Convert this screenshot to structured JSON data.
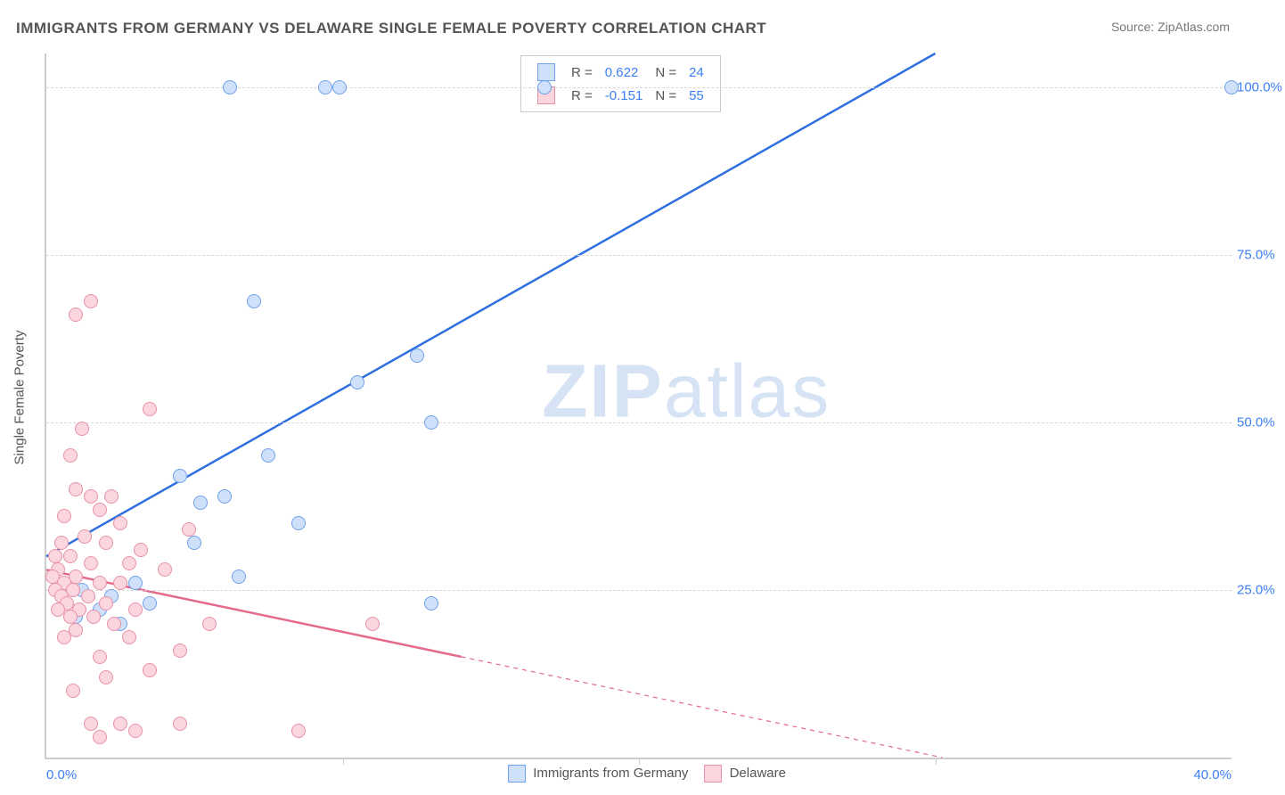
{
  "title": "IMMIGRANTS FROM GERMANY VS DELAWARE SINGLE FEMALE POVERTY CORRELATION CHART",
  "source_prefix": "Source: ",
  "source_name": "ZipAtlas.com",
  "y_axis_title": "Single Female Poverty",
  "watermark_bold": "ZIP",
  "watermark_light": "atlas",
  "chart": {
    "type": "scatter",
    "xlim": [
      0,
      40
    ],
    "ylim": [
      0,
      105
    ],
    "x_ticks": [
      0,
      10,
      20,
      30,
      40
    ],
    "x_tick_labels": [
      "0.0%",
      "",
      "",
      "",
      "40.0%"
    ],
    "y_ticks": [
      25,
      50,
      75,
      100
    ],
    "y_tick_labels": [
      "25.0%",
      "50.0%",
      "75.0%",
      "100.0%"
    ],
    "grid_color": "#d8d8d8",
    "axis_color": "#cccccc",
    "background_color": "#ffffff",
    "tick_label_color": "#3d7ff5",
    "axis_title_color": "#555555",
    "label_fontsize": 15,
    "title_fontsize": 17,
    "point_radius": 8,
    "series": [
      {
        "name": "Immigrants from Germany",
        "fill": "#cfe0fb",
        "stroke": "#6fa0ea",
        "line_color": "#2f6fe0",
        "line_width": 2.5,
        "R": "0.622",
        "N": "24",
        "points": [
          [
            6.2,
            100
          ],
          [
            9.4,
            100
          ],
          [
            9.9,
            100
          ],
          [
            16.8,
            100
          ],
          [
            40.0,
            100
          ],
          [
            7.0,
            68
          ],
          [
            12.5,
            60
          ],
          [
            10.5,
            56
          ],
          [
            13.0,
            50
          ],
          [
            7.5,
            45
          ],
          [
            4.5,
            42
          ],
          [
            6.0,
            39
          ],
          [
            5.2,
            38
          ],
          [
            8.5,
            35
          ],
          [
            5.0,
            32
          ],
          [
            6.5,
            27
          ],
          [
            3.0,
            26
          ],
          [
            1.2,
            25
          ],
          [
            2.2,
            24
          ],
          [
            3.5,
            23
          ],
          [
            13.0,
            23
          ],
          [
            1.8,
            22
          ],
          [
            1.0,
            21
          ],
          [
            2.5,
            20
          ]
        ],
        "trend": {
          "x1": 0,
          "y1": 30,
          "x2": 30,
          "y2": 105,
          "dash_from_x": null
        }
      },
      {
        "name": "Delaware",
        "fill": "#fbd6df",
        "stroke": "#e890a6",
        "line_color": "#e36a8b",
        "line_width": 2.5,
        "R": "-0.151",
        "N": "55",
        "points": [
          [
            1.5,
            68
          ],
          [
            1.0,
            66
          ],
          [
            3.5,
            52
          ],
          [
            1.2,
            49
          ],
          [
            0.8,
            45
          ],
          [
            1.0,
            40
          ],
          [
            1.5,
            39
          ],
          [
            2.2,
            39
          ],
          [
            1.8,
            37
          ],
          [
            0.6,
            36
          ],
          [
            2.5,
            35
          ],
          [
            4.8,
            34
          ],
          [
            1.3,
            33
          ],
          [
            0.5,
            32
          ],
          [
            2.0,
            32
          ],
          [
            3.2,
            31
          ],
          [
            0.3,
            30
          ],
          [
            0.8,
            30
          ],
          [
            1.5,
            29
          ],
          [
            2.8,
            29
          ],
          [
            4.0,
            28
          ],
          [
            0.4,
            28
          ],
          [
            1.0,
            27
          ],
          [
            0.2,
            27
          ],
          [
            0.6,
            26
          ],
          [
            1.8,
            26
          ],
          [
            2.5,
            26
          ],
          [
            0.3,
            25
          ],
          [
            0.9,
            25
          ],
          [
            1.4,
            24
          ],
          [
            0.5,
            24
          ],
          [
            2.0,
            23
          ],
          [
            0.7,
            23
          ],
          [
            1.1,
            22
          ],
          [
            3.0,
            22
          ],
          [
            0.4,
            22
          ],
          [
            1.6,
            21
          ],
          [
            0.8,
            21
          ],
          [
            2.3,
            20
          ],
          [
            5.5,
            20
          ],
          [
            11.0,
            20
          ],
          [
            1.0,
            19
          ],
          [
            2.8,
            18
          ],
          [
            0.6,
            18
          ],
          [
            4.5,
            16
          ],
          [
            1.8,
            15
          ],
          [
            3.5,
            13
          ],
          [
            2.0,
            12
          ],
          [
            0.9,
            10
          ],
          [
            1.5,
            5
          ],
          [
            2.5,
            5
          ],
          [
            4.5,
            5
          ],
          [
            8.5,
            4
          ],
          [
            3.0,
            4
          ],
          [
            1.8,
            3
          ]
        ],
        "trend": {
          "x1": 0,
          "y1": 28,
          "x2": 27,
          "y2": 3,
          "dash_from_x": 14
        }
      }
    ]
  },
  "legend_top": {
    "R_label": "R =",
    "N_label": "N =",
    "value_color": "#3d7ff5"
  },
  "legend_bottom_labels": [
    "Immigrants from Germany",
    "Delaware"
  ]
}
